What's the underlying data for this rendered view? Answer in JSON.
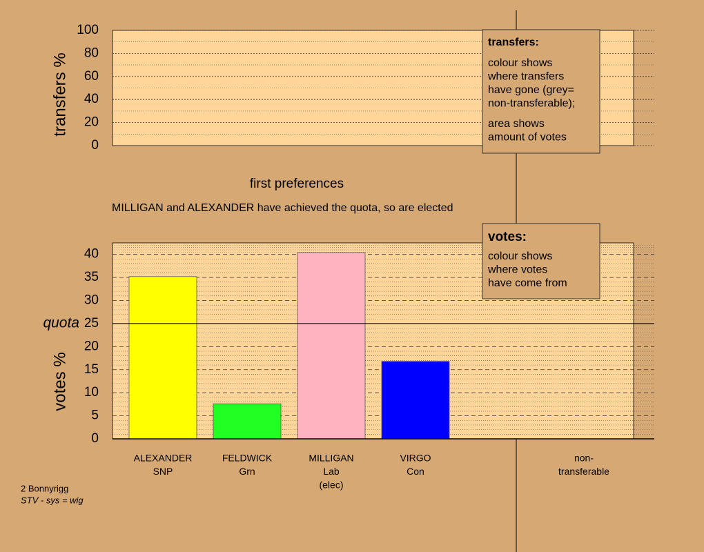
{
  "chart_data": [
    {
      "type": "empty",
      "y_label": "transfers %",
      "ylim": [
        0,
        100
      ],
      "yticks": [
        0,
        20,
        40,
        60,
        80,
        100
      ],
      "grid": true
    },
    {
      "type": "bar",
      "title": "first preferences",
      "subtitle": "MILLIGAN and ALEXANDER have achieved the quota, so are elected",
      "y_label": "votes %",
      "categories": [
        [
          "ALEXANDER",
          "SNP"
        ],
        [
          "FELDWICK",
          "Grn"
        ],
        [
          "MILLIGAN",
          "Lab",
          "(elec)"
        ],
        [
          "VIRGO",
          "Con"
        ],
        null,
        [
          "non-",
          "transferable"
        ]
      ],
      "values": [
        35.2,
        7.6,
        40.4,
        16.8,
        null,
        null
      ],
      "colors": [
        "#ffff00",
        "#22ff22",
        "#ffb3c1",
        "#0000ff",
        null,
        null
      ],
      "ylim": [
        0,
        42.5
      ],
      "yticks": [
        0,
        5,
        10,
        15,
        20,
        25,
        30,
        35,
        40
      ],
      "quota": 25,
      "quota_label": "quota",
      "grid": true
    }
  ],
  "legends": {
    "transfers": {
      "title": "transfers:",
      "paragraphs": [
        [
          "colour shows",
          "where transfers",
          "have gone (grey=",
          "non-transferable);"
        ],
        [
          "area shows",
          "amount of votes"
        ]
      ]
    },
    "votes": {
      "title": "votes:",
      "paragraphs": [
        [
          "colour shows",
          "where votes",
          "have come from"
        ]
      ]
    }
  },
  "footer": [
    "2 Bonnyrigg",
    "STV - sys = wig"
  ]
}
